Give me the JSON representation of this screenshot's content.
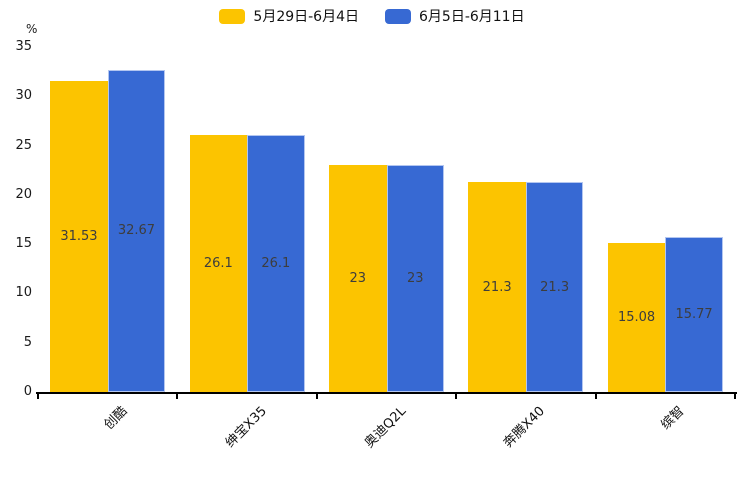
{
  "chart_data": {
    "type": "bar",
    "title": "",
    "ylabel": "%",
    "categories": [
      "创酷",
      "绅宝X35",
      "奥迪Q2L",
      "奔腾X40",
      "缤智"
    ],
    "series": [
      {
        "name": "5月29日-6月4日",
        "color": "#FCC400",
        "values": [
          31.53,
          26.1,
          23,
          21.3,
          15.08
        ]
      },
      {
        "name": "6月5日-6月11日",
        "color": "#3769D3",
        "values": [
          32.67,
          26.1,
          23,
          21.3,
          15.77
        ]
      }
    ],
    "value_labels": [
      [
        "31.53",
        "26.1",
        "23",
        "21.3",
        "15.08"
      ],
      [
        "32.67",
        "26.1",
        "23",
        "21.3",
        "15.77"
      ]
    ],
    "ylim": [
      0,
      35
    ],
    "yticks": [
      0,
      5,
      10,
      15,
      20,
      25,
      30,
      35
    ],
    "grid": false,
    "legend_position": "top",
    "axis_color": "#000000",
    "value_label_color": "#3d3d3d",
    "blue_bar_border_color": "#b3c6f0"
  }
}
